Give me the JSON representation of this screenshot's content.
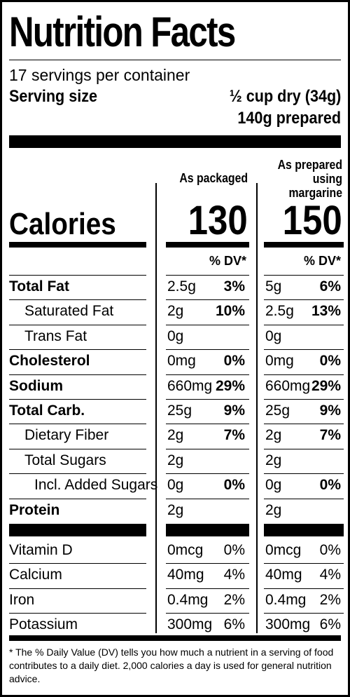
{
  "title": "Nutrition Facts",
  "servings_per_container": "17 servings per container",
  "serving_size": {
    "label": "Serving size",
    "value": "½ cup dry (34g)",
    "prepared": "140g prepared"
  },
  "columns": {
    "packaged_header": "As packaged",
    "prepared_header_line1": "As prepared",
    "prepared_header_line2": "using",
    "prepared_header_line3": "margarine"
  },
  "calories": {
    "label": "Calories",
    "packaged": "130",
    "prepared": "150"
  },
  "dv_header": "% DV*",
  "nutrients": [
    {
      "name": "Total Fat",
      "bold": true,
      "indent": 0,
      "pk_amt": "2.5g",
      "pk_dv": "3%",
      "pr_amt": "5g",
      "pr_dv": "6%"
    },
    {
      "name": "Saturated Fat",
      "bold": false,
      "indent": 1,
      "pk_amt": "2g",
      "pk_dv": "10%",
      "pr_amt": "2.5g",
      "pr_dv": "13%"
    },
    {
      "name": "Trans Fat",
      "bold": false,
      "indent": 1,
      "pk_amt": "0g",
      "pk_dv": "",
      "pr_amt": "0g",
      "pr_dv": ""
    },
    {
      "name": "Cholesterol",
      "bold": true,
      "indent": 0,
      "pk_amt": "0mg",
      "pk_dv": "0%",
      "pr_amt": "0mg",
      "pr_dv": "0%"
    },
    {
      "name": "Sodium",
      "bold": true,
      "indent": 0,
      "pk_amt": "660mg",
      "pk_dv": "29%",
      "pr_amt": "660mg",
      "pr_dv": "29%"
    },
    {
      "name": "Total Carb.",
      "bold": true,
      "indent": 0,
      "pk_amt": "25g",
      "pk_dv": "9%",
      "pr_amt": "25g",
      "pr_dv": "9%"
    },
    {
      "name": "Dietary Fiber",
      "bold": false,
      "indent": 1,
      "pk_amt": "2g",
      "pk_dv": "7%",
      "pr_amt": "2g",
      "pr_dv": "7%"
    },
    {
      "name": "Total Sugars",
      "bold": false,
      "indent": 1,
      "pk_amt": "2g",
      "pk_dv": "",
      "pr_amt": "2g",
      "pr_dv": ""
    },
    {
      "name": "Incl. Added Sugars",
      "bold": false,
      "indent": 2,
      "pk_amt": "0g",
      "pk_dv": "0%",
      "pr_amt": "0g",
      "pr_dv": "0%"
    },
    {
      "name": "Protein",
      "bold": true,
      "indent": 0,
      "pk_amt": "2g",
      "pk_dv": "",
      "pr_amt": "2g",
      "pr_dv": ""
    }
  ],
  "vitamins": [
    {
      "name": "Vitamin D",
      "pk_amt": "0mcg",
      "pk_dv": "0%",
      "pr_amt": "0mcg",
      "pr_dv": "0%"
    },
    {
      "name": "Calcium",
      "pk_amt": "40mg",
      "pk_dv": "4%",
      "pr_amt": "40mg",
      "pr_dv": "4%"
    },
    {
      "name": "Iron",
      "pk_amt": "0.4mg",
      "pk_dv": "2%",
      "pr_amt": "0.4mg",
      "pr_dv": "2%"
    },
    {
      "name": "Potassium",
      "pk_amt": "300mg",
      "pk_dv": "6%",
      "pr_amt": "300mg",
      "pr_dv": "6%"
    }
  ],
  "footnote": "* The % Daily Value (DV) tells you how much a nutrient in a serving of food contributes to a daily diet. 2,000 calories a day is used for general nutrition advice."
}
